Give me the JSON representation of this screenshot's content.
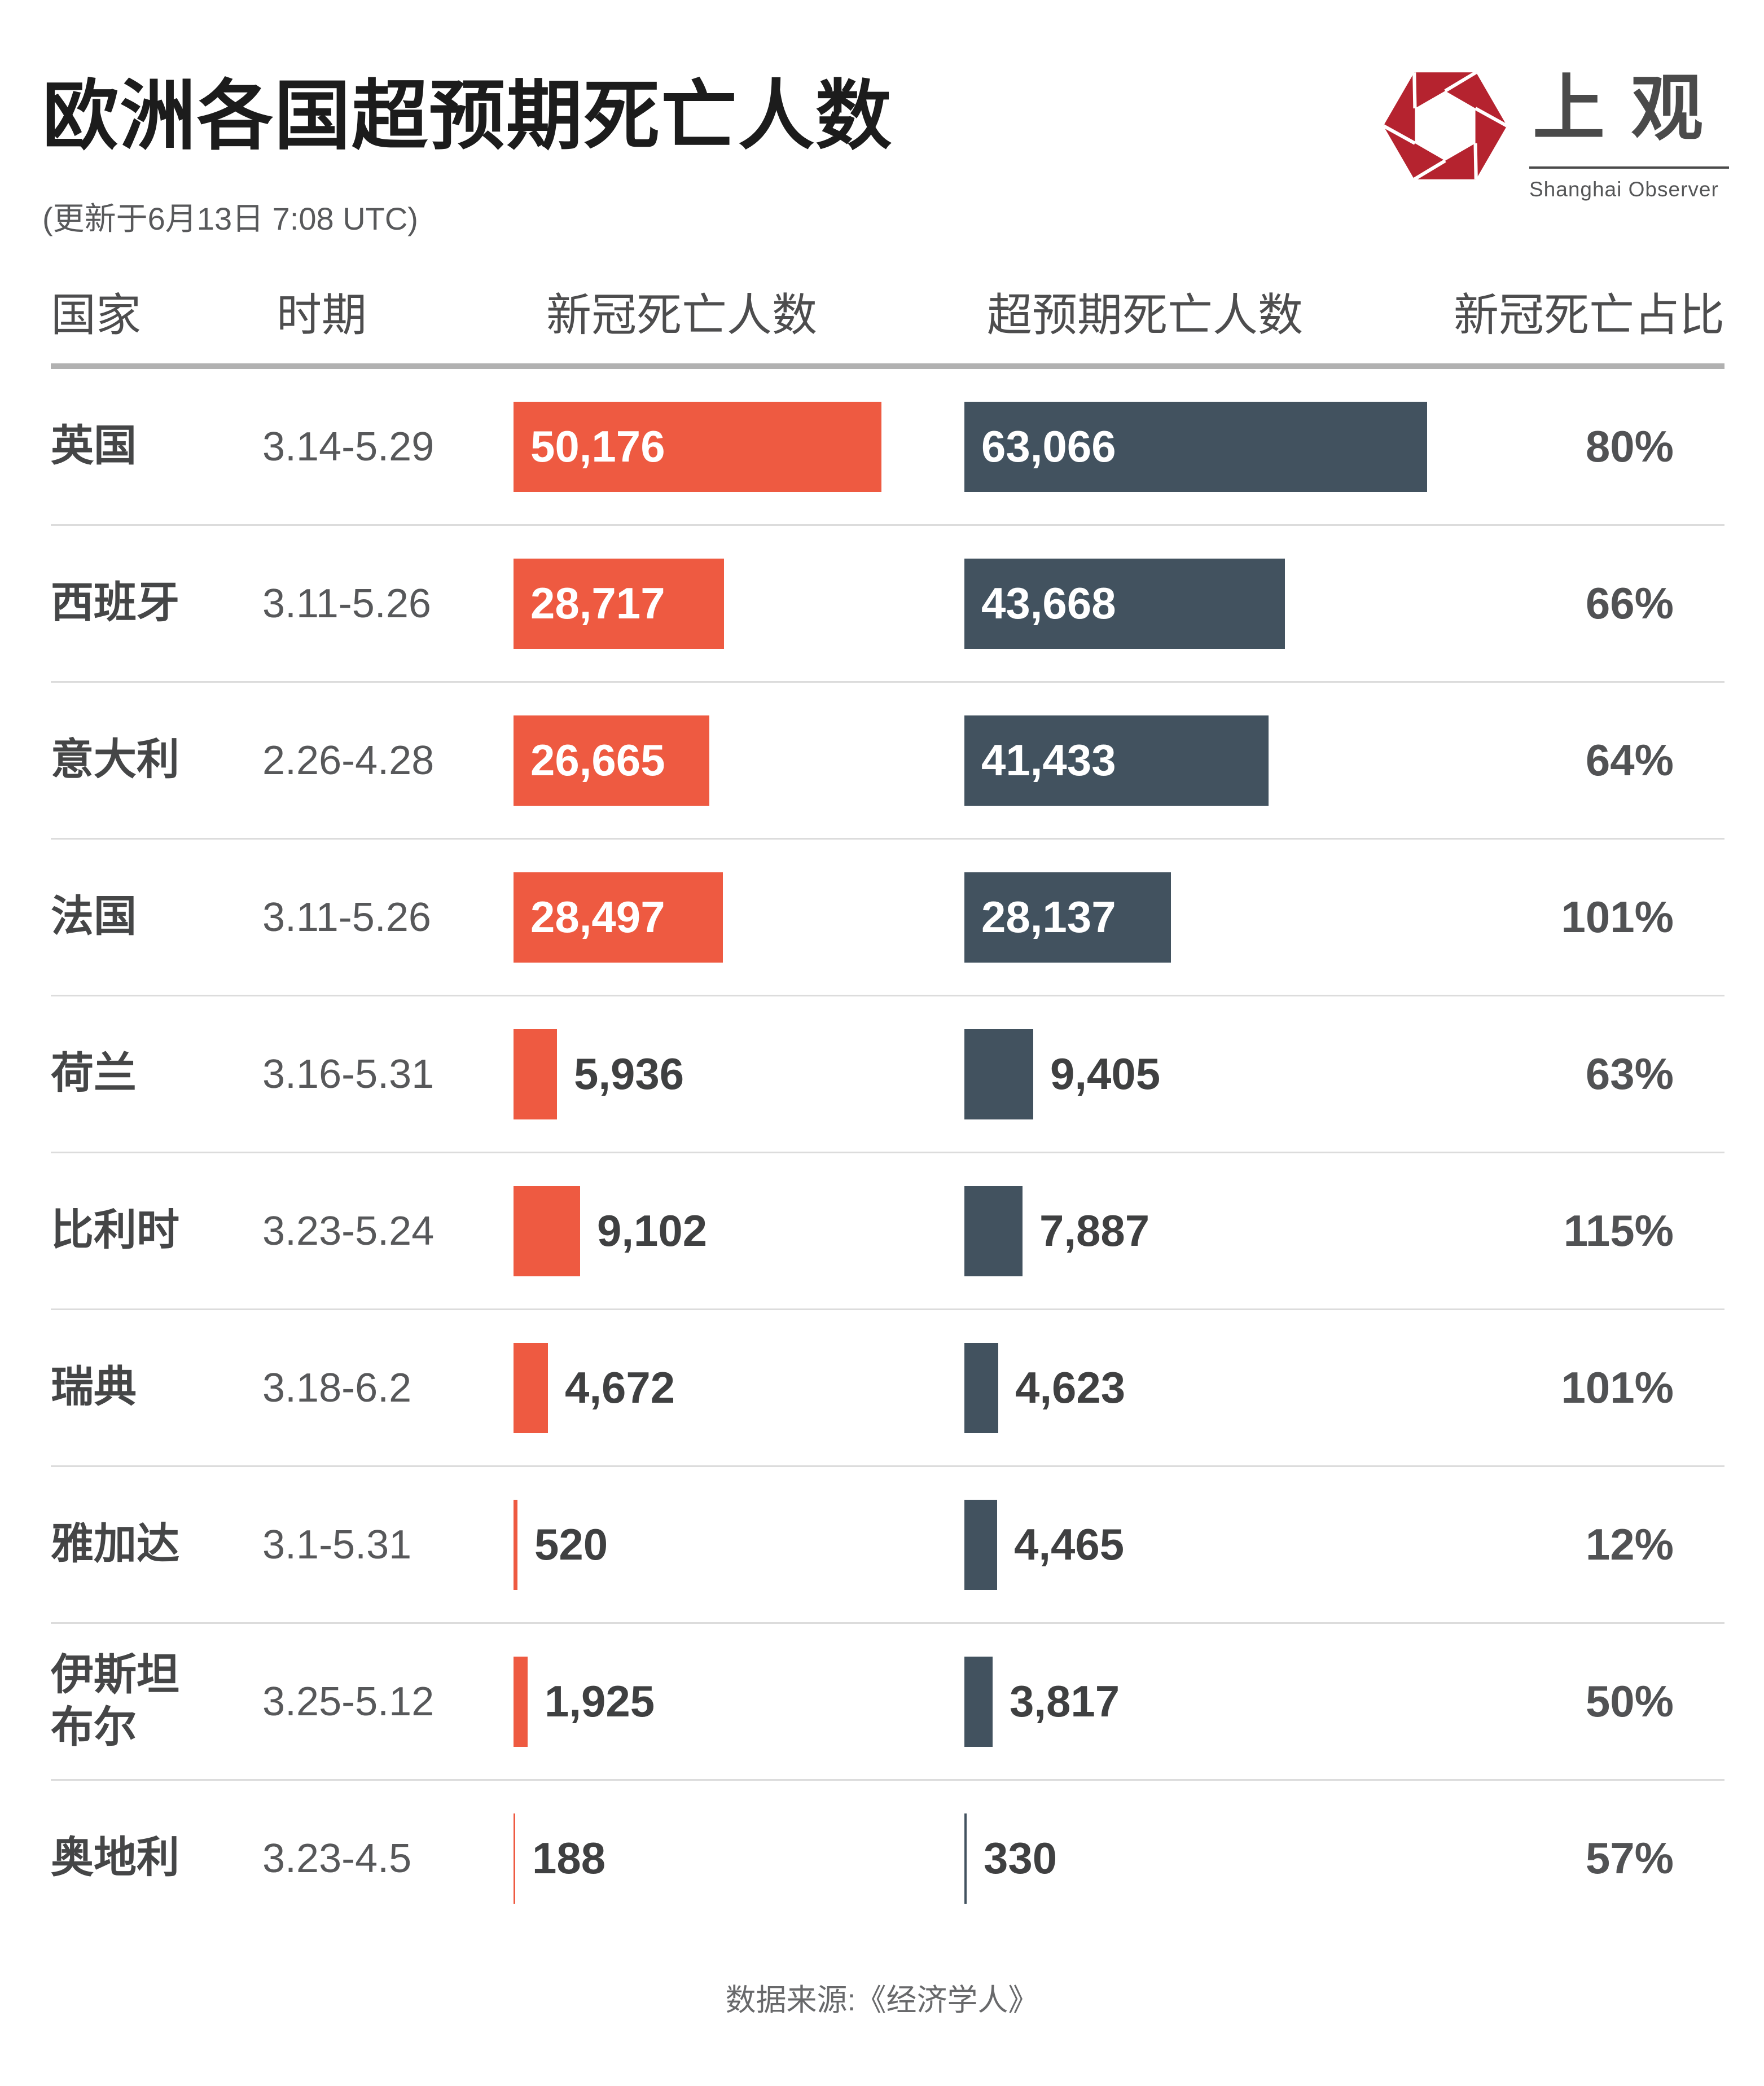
{
  "page": {
    "title": "欧洲各国超预期死亡人数",
    "subtitle": "(更新于6月13日 7:08 UTC)"
  },
  "logo": {
    "cn": "上观",
    "en": "Shanghai Observer",
    "red": "#b5232f",
    "icon": "aperture-hexagon-icon"
  },
  "table": {
    "headers": [
      "国家",
      "时期",
      "新冠死亡人数",
      "超预期死亡人数",
      "新冠死亡占比"
    ]
  },
  "chart_data": {
    "type": "bar",
    "orientation": "horizontal",
    "title": "欧洲各国超预期死亡人数",
    "legend_position": "column-headers",
    "grid": false,
    "max_value": 63066,
    "series": [
      {
        "name": "新冠死亡人数",
        "color": "#ee5a41"
      },
      {
        "name": "超预期死亡人数",
        "color": "#42525f"
      }
    ],
    "rows": [
      {
        "country": "英国",
        "period": "3.14-5.29",
        "covid_deaths": 50176,
        "covid_label": "50,176",
        "excess_deaths": 63066,
        "excess_label": "63,066",
        "covid_share": "80%"
      },
      {
        "country": "西班牙",
        "period": "3.11-5.26",
        "covid_deaths": 28717,
        "covid_label": "28,717",
        "excess_deaths": 43668,
        "excess_label": "43,668",
        "covid_share": "66%"
      },
      {
        "country": "意大利",
        "period": "2.26-4.28",
        "covid_deaths": 26665,
        "covid_label": "26,665",
        "excess_deaths": 41433,
        "excess_label": "41,433",
        "covid_share": "64%"
      },
      {
        "country": "法国",
        "period": "3.11-5.26",
        "covid_deaths": 28497,
        "covid_label": "28,497",
        "excess_deaths": 28137,
        "excess_label": "28,137",
        "covid_share": "101%"
      },
      {
        "country": "荷兰",
        "period": "3.16-5.31",
        "covid_deaths": 5936,
        "covid_label": "5,936",
        "excess_deaths": 9405,
        "excess_label": "9,405",
        "covid_share": "63%"
      },
      {
        "country": "比利时",
        "period": "3.23-5.24",
        "covid_deaths": 9102,
        "covid_label": "9,102",
        "excess_deaths": 7887,
        "excess_label": "7,887",
        "covid_share": "115%"
      },
      {
        "country": "瑞典",
        "period": "3.18-6.2",
        "covid_deaths": 4672,
        "covid_label": "4,672",
        "excess_deaths": 4623,
        "excess_label": "4,623",
        "covid_share": "101%"
      },
      {
        "country": "雅加达",
        "period": "3.1-5.31",
        "covid_deaths": 520,
        "covid_label": "520",
        "excess_deaths": 4465,
        "excess_label": "4,465",
        "covid_share": "12%"
      },
      {
        "country": "伊斯坦布尔",
        "period": "3.25-5.12",
        "covid_deaths": 1925,
        "covid_label": "1,925",
        "excess_deaths": 3817,
        "excess_label": "3,817",
        "covid_share": "50%"
      },
      {
        "country": "奥地利",
        "period": "3.23-4.5",
        "covid_deaths": 188,
        "covid_label": "188",
        "excess_deaths": 330,
        "excess_label": "330",
        "covid_share": "57%"
      }
    ]
  },
  "footer": {
    "source": "数据来源:《经济学人》"
  }
}
